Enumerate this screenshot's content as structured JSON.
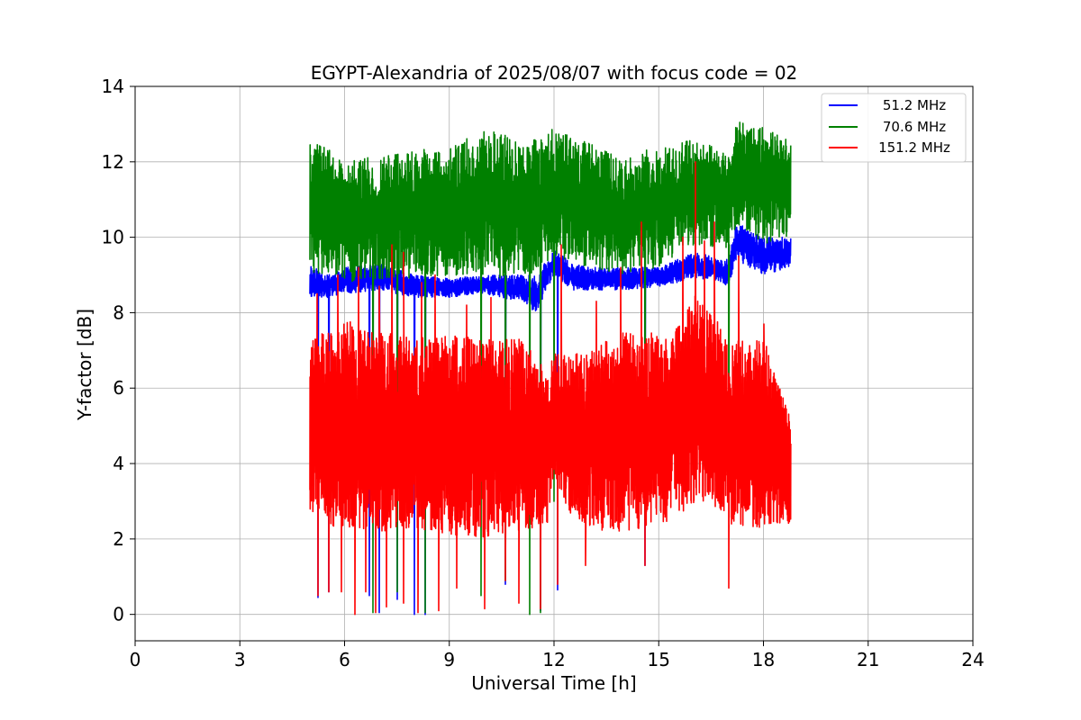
{
  "chart_data": {
    "type": "line",
    "title": "EGYPT-Alexandria of 2025/08/07 with focus code = 02",
    "xlabel": "Universal Time [h]",
    "ylabel": "Y-factor [dB]",
    "xlim": [
      0,
      24
    ],
    "ylim": [
      -0.7,
      14
    ],
    "xticks": [
      0,
      3,
      6,
      9,
      12,
      15,
      18,
      21,
      24
    ],
    "yticks": [
      0,
      2,
      4,
      6,
      8,
      10,
      12,
      14
    ],
    "grid": true,
    "legend_position": "upper-right",
    "series": [
      {
        "name": "51.2 MHz",
        "color": "#0000ff",
        "t_start": 5.0,
        "t_end": 18.75,
        "envelope": {
          "x": [
            5.0,
            5.5,
            6.0,
            7.0,
            8.0,
            9.0,
            10.0,
            11.0,
            11.5,
            12.0,
            12.5,
            13.0,
            14.0,
            15.0,
            16.0,
            16.5,
            17.0,
            17.2,
            18.0,
            18.75
          ],
          "low": [
            8.4,
            8.4,
            8.5,
            8.6,
            8.4,
            8.4,
            8.5,
            8.3,
            8.0,
            9.0,
            8.6,
            8.6,
            8.6,
            8.7,
            8.9,
            8.9,
            8.7,
            9.4,
            9.0,
            9.2
          ],
          "high": [
            9.3,
            9.0,
            9.2,
            9.3,
            9.0,
            8.9,
            9.0,
            9.0,
            9.0,
            9.7,
            9.3,
            9.2,
            9.2,
            9.2,
            9.6,
            9.5,
            9.4,
            10.4,
            10.0,
            10.0
          ]
        },
        "dips": [
          [
            5.23,
            0.45
          ],
          [
            5.55,
            0.6
          ],
          [
            6.7,
            0.5
          ],
          [
            7.0,
            0.05
          ],
          [
            7.5,
            0.4
          ],
          [
            8.0,
            0.0
          ],
          [
            8.3,
            0.0
          ],
          [
            10.6,
            0.8
          ],
          [
            11.6,
            0.1
          ],
          [
            12.1,
            0.65
          ],
          [
            14.6,
            1.3
          ]
        ]
      },
      {
        "name": "70.6 MHz",
        "color": "#008000",
        "t_start": 5.0,
        "t_end": 18.75,
        "envelope": {
          "x": [
            5.0,
            5.5,
            6.0,
            7.0,
            8.0,
            9.0,
            10.0,
            11.0,
            12.0,
            13.0,
            14.0,
            15.0,
            16.0,
            17.0,
            17.2,
            18.0,
            18.75
          ],
          "low": [
            9.0,
            9.0,
            8.8,
            8.9,
            8.9,
            9.0,
            9.0,
            8.8,
            9.5,
            9.2,
            9.0,
            9.2,
            9.8,
            9.7,
            10.2,
            9.8,
            10.0
          ],
          "high": [
            12.6,
            12.4,
            12.0,
            12.2,
            12.3,
            12.4,
            12.9,
            12.6,
            12.9,
            12.5,
            12.2,
            12.4,
            12.6,
            12.3,
            13.1,
            12.9,
            12.8
          ]
        },
        "dips": [
          [
            6.8,
            0.05
          ],
          [
            7.5,
            0.6
          ],
          [
            8.3,
            0.05
          ],
          [
            9.9,
            0.5
          ],
          [
            10.6,
            0.9
          ],
          [
            11.3,
            0.0
          ],
          [
            11.6,
            0.05
          ],
          [
            12.0,
            3.0
          ],
          [
            14.6,
            2.5
          ],
          [
            17.0,
            3.0
          ]
        ]
      },
      {
        "name": "151.2 MHz",
        "color": "#ff0000",
        "t_start": 5.0,
        "t_end": 18.75,
        "envelope": {
          "x": [
            5.0,
            5.5,
            6.0,
            7.0,
            8.0,
            9.0,
            10.0,
            11.0,
            11.8,
            12.0,
            12.5,
            13.0,
            14.0,
            15.0,
            15.5,
            16.0,
            16.5,
            17.0,
            17.5,
            18.0,
            18.75
          ],
          "low": [
            2.8,
            2.3,
            2.3,
            2.2,
            2.3,
            2.1,
            2.0,
            2.2,
            2.4,
            3.6,
            2.6,
            2.3,
            2.1,
            2.3,
            2.6,
            2.9,
            3.0,
            2.4,
            2.3,
            2.3,
            2.4
          ],
          "high": [
            7.2,
            7.6,
            7.8,
            7.5,
            7.4,
            7.4,
            7.3,
            7.3,
            6.5,
            7.0,
            6.9,
            7.0,
            7.5,
            7.5,
            7.6,
            8.5,
            8.2,
            7.2,
            7.3,
            7.3,
            5.2
          ]
        },
        "dips": [
          [
            5.23,
            0.5
          ],
          [
            5.55,
            0.6
          ],
          [
            5.9,
            0.6
          ],
          [
            6.3,
            0.0
          ],
          [
            6.6,
            0.6
          ],
          [
            6.9,
            0.05
          ],
          [
            7.2,
            0.2
          ],
          [
            7.7,
            0.3
          ],
          [
            8.1,
            0.05
          ],
          [
            8.7,
            0.1
          ],
          [
            9.2,
            0.7
          ],
          [
            10.0,
            0.15
          ],
          [
            10.6,
            0.9
          ],
          [
            11.0,
            0.3
          ],
          [
            11.6,
            0.15
          ],
          [
            12.1,
            0.8
          ],
          [
            12.9,
            1.3
          ],
          [
            14.6,
            1.3
          ],
          [
            17.0,
            0.7
          ]
        ],
        "spikes": [
          [
            5.2,
            8.5
          ],
          [
            5.8,
            9.0
          ],
          [
            6.4,
            9.2
          ],
          [
            7.0,
            8.7
          ],
          [
            7.35,
            9.8
          ],
          [
            7.7,
            9.6
          ],
          [
            8.2,
            8.8
          ],
          [
            8.6,
            9.0
          ],
          [
            9.5,
            8.2
          ],
          [
            10.2,
            8.4
          ],
          [
            12.2,
            9.8
          ],
          [
            13.2,
            8.3
          ],
          [
            13.9,
            9.2
          ],
          [
            14.5,
            10.4
          ],
          [
            15.7,
            10.0
          ],
          [
            16.05,
            12.0
          ],
          [
            16.3,
            9.9
          ],
          [
            16.6,
            10.4
          ],
          [
            17.3,
            9.5
          ],
          [
            18.0,
            7.7
          ]
        ]
      }
    ]
  }
}
